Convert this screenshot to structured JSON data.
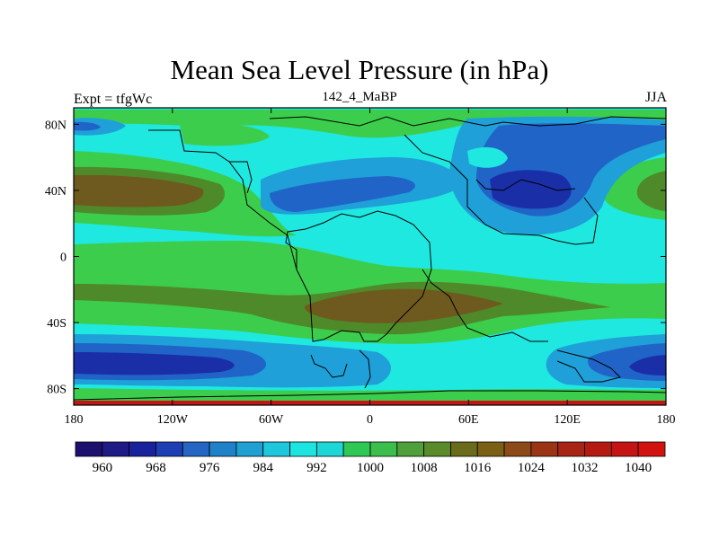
{
  "title": "Mean Sea Level Pressure (in hPa)",
  "subtitle_left": "Expt = tfgWc",
  "subtitle_center": "142_4_MaBP",
  "subtitle_right": "JJA",
  "lat_ticks": [
    "80N",
    "40N",
    "0",
    "40S",
    "80S"
  ],
  "lon_ticks": [
    "180",
    "120W",
    "60W",
    "0",
    "60E",
    "120E",
    "180"
  ],
  "colorbar": {
    "labels": [
      "960",
      "968",
      "976",
      "984",
      "992",
      "1000",
      "1008",
      "1016",
      "1024",
      "1032",
      "1040"
    ],
    "colors": [
      "#1c0f6e",
      "#1e1a86",
      "#18229c",
      "#1d3fb3",
      "#2565c4",
      "#1f82c9",
      "#1f9fd2",
      "#1fc7dc",
      "#1ce4e0",
      "#1dd7d7",
      "#2fc855",
      "#3cbe4c",
      "#4fa03a",
      "#5a8a2a",
      "#6b6b1c",
      "#7a5f15",
      "#8c4a18",
      "#9a3414",
      "#a82414",
      "#b51a12",
      "#c41414",
      "#d2120f"
    ]
  },
  "colors": {
    "cyan": "#1fe8e0",
    "green": "#3ccd4c",
    "olive": "#4e8a2a",
    "brown": "#6e5a1e",
    "blue1": "#1fa0d8",
    "blue2": "#2064c8",
    "blue3": "#1a2ea8",
    "coast": "#000000"
  }
}
